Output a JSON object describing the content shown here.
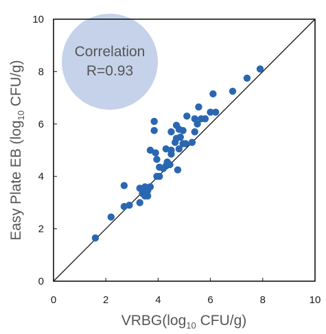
{
  "chart_data": {
    "type": "scatter",
    "title": "",
    "xlabel": {
      "prefix": "VRBG(log",
      "sub": "10",
      "suffix": " CFU/g)"
    },
    "ylabel": {
      "prefix": "Easy Plate EB (log",
      "sub": "10",
      "suffix": " CFU/g)"
    },
    "xlim": [
      0,
      10
    ],
    "ylim": [
      0,
      10
    ],
    "xticks": [
      0,
      2,
      4,
      6,
      8,
      10
    ],
    "yticks": [
      0,
      2,
      4,
      6,
      8,
      10
    ],
    "grid": false,
    "reference_line": {
      "from": [
        0,
        0
      ],
      "to": [
        10,
        10
      ]
    },
    "annotation": {
      "line1": "Correlation",
      "line2": "R=0.93"
    },
    "colors": {
      "points": "#2a67b1",
      "badge": "#c5d2ea",
      "frame": "#111111"
    },
    "points": [
      [
        1.6,
        1.65
      ],
      [
        2.2,
        2.45
      ],
      [
        2.7,
        3.65
      ],
      [
        2.7,
        2.85
      ],
      [
        2.9,
        2.9
      ],
      [
        3.3,
        3.55
      ],
      [
        3.3,
        3.0
      ],
      [
        3.4,
        3.5
      ],
      [
        3.4,
        3.35
      ],
      [
        3.5,
        3.6
      ],
      [
        3.5,
        3.25
      ],
      [
        3.6,
        3.45
      ],
      [
        3.6,
        3.25
      ],
      [
        3.7,
        3.6
      ],
      [
        3.7,
        5.0
      ],
      [
        3.85,
        6.1
      ],
      [
        3.85,
        5.75
      ],
      [
        3.9,
        4.9
      ],
      [
        3.95,
        4.65
      ],
      [
        3.95,
        4.0
      ],
      [
        4.05,
        4.0
      ],
      [
        4.05,
        4.35
      ],
      [
        4.2,
        4.3
      ],
      [
        4.3,
        4.4
      ],
      [
        4.3,
        5.05
      ],
      [
        4.35,
        4.55
      ],
      [
        4.45,
        4.45
      ],
      [
        4.5,
        5.0
      ],
      [
        4.5,
        4.85
      ],
      [
        4.5,
        5.7
      ],
      [
        4.65,
        5.3
      ],
      [
        4.7,
        5.95
      ],
      [
        4.7,
        5.45
      ],
      [
        4.75,
        4.25
      ],
      [
        4.8,
        5.05
      ],
      [
        4.8,
        5.8
      ],
      [
        4.85,
        5.5
      ],
      [
        4.95,
        5.25
      ],
      [
        4.95,
        5.75
      ],
      [
        5.05,
        5.25
      ],
      [
        5.1,
        6.3
      ],
      [
        5.3,
        5.3
      ],
      [
        5.4,
        5.7
      ],
      [
        5.4,
        6.2
      ],
      [
        5.5,
        6.0
      ],
      [
        5.55,
        6.65
      ],
      [
        5.65,
        6.2
      ],
      [
        5.8,
        6.2
      ],
      [
        6.0,
        6.45
      ],
      [
        6.1,
        7.15
      ],
      [
        6.2,
        6.45
      ],
      [
        6.85,
        7.25
      ],
      [
        7.4,
        7.75
      ],
      [
        7.9,
        8.1
      ]
    ]
  }
}
